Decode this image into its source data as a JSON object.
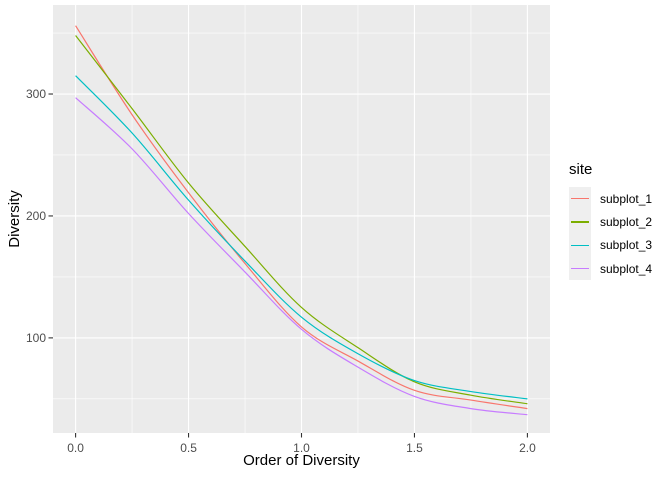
{
  "chart_data": {
    "type": "line",
    "title": "",
    "xlabel": "Order of Diversity",
    "ylabel": "Diversity",
    "legend_title": "site",
    "legend_position": "right",
    "panel_background": "#EBEBEB",
    "grid_color": "#FFFFFF",
    "grid": "major+minor",
    "tick_mark_color": "#333333",
    "legend_key_background": "#EFEFEF",
    "xlim": [
      -0.1,
      2.1
    ],
    "ylim": [
      22,
      373
    ],
    "x_ticks": [
      0.0,
      0.5,
      1.0,
      1.5,
      2.0
    ],
    "x_tick_labels": [
      "0.0",
      "0.5",
      "1.0",
      "1.5",
      "2.0"
    ],
    "x_minor_ticks": [
      0.25,
      0.75,
      1.25,
      1.75
    ],
    "y_ticks": [
      100,
      200,
      300
    ],
    "y_tick_labels": [
      "100",
      "200",
      "300"
    ],
    "y_minor_ticks": [
      50,
      150,
      250,
      350
    ],
    "x": [
      0,
      0.25,
      0.5,
      0.75,
      1.0,
      1.25,
      1.5,
      1.75,
      2.0
    ],
    "series": [
      {
        "name": "subplot_1",
        "color": "#F8766D",
        "values": [
          356,
          283,
          219,
          161,
          109,
          81,
          57,
          49,
          42
        ]
      },
      {
        "name": "subplot_2",
        "color": "#7CAE00",
        "values": [
          348,
          288,
          227,
          175,
          125,
          92,
          64,
          53,
          46
        ]
      },
      {
        "name": "subplot_3",
        "color": "#00BFC4",
        "values": [
          315,
          268,
          213,
          163,
          117,
          87,
          65,
          56,
          50
        ]
      },
      {
        "name": "subplot_4",
        "color": "#C77CFF",
        "values": [
          297,
          255,
          202,
          154,
          107,
          76,
          52,
          42,
          37
        ]
      }
    ]
  }
}
